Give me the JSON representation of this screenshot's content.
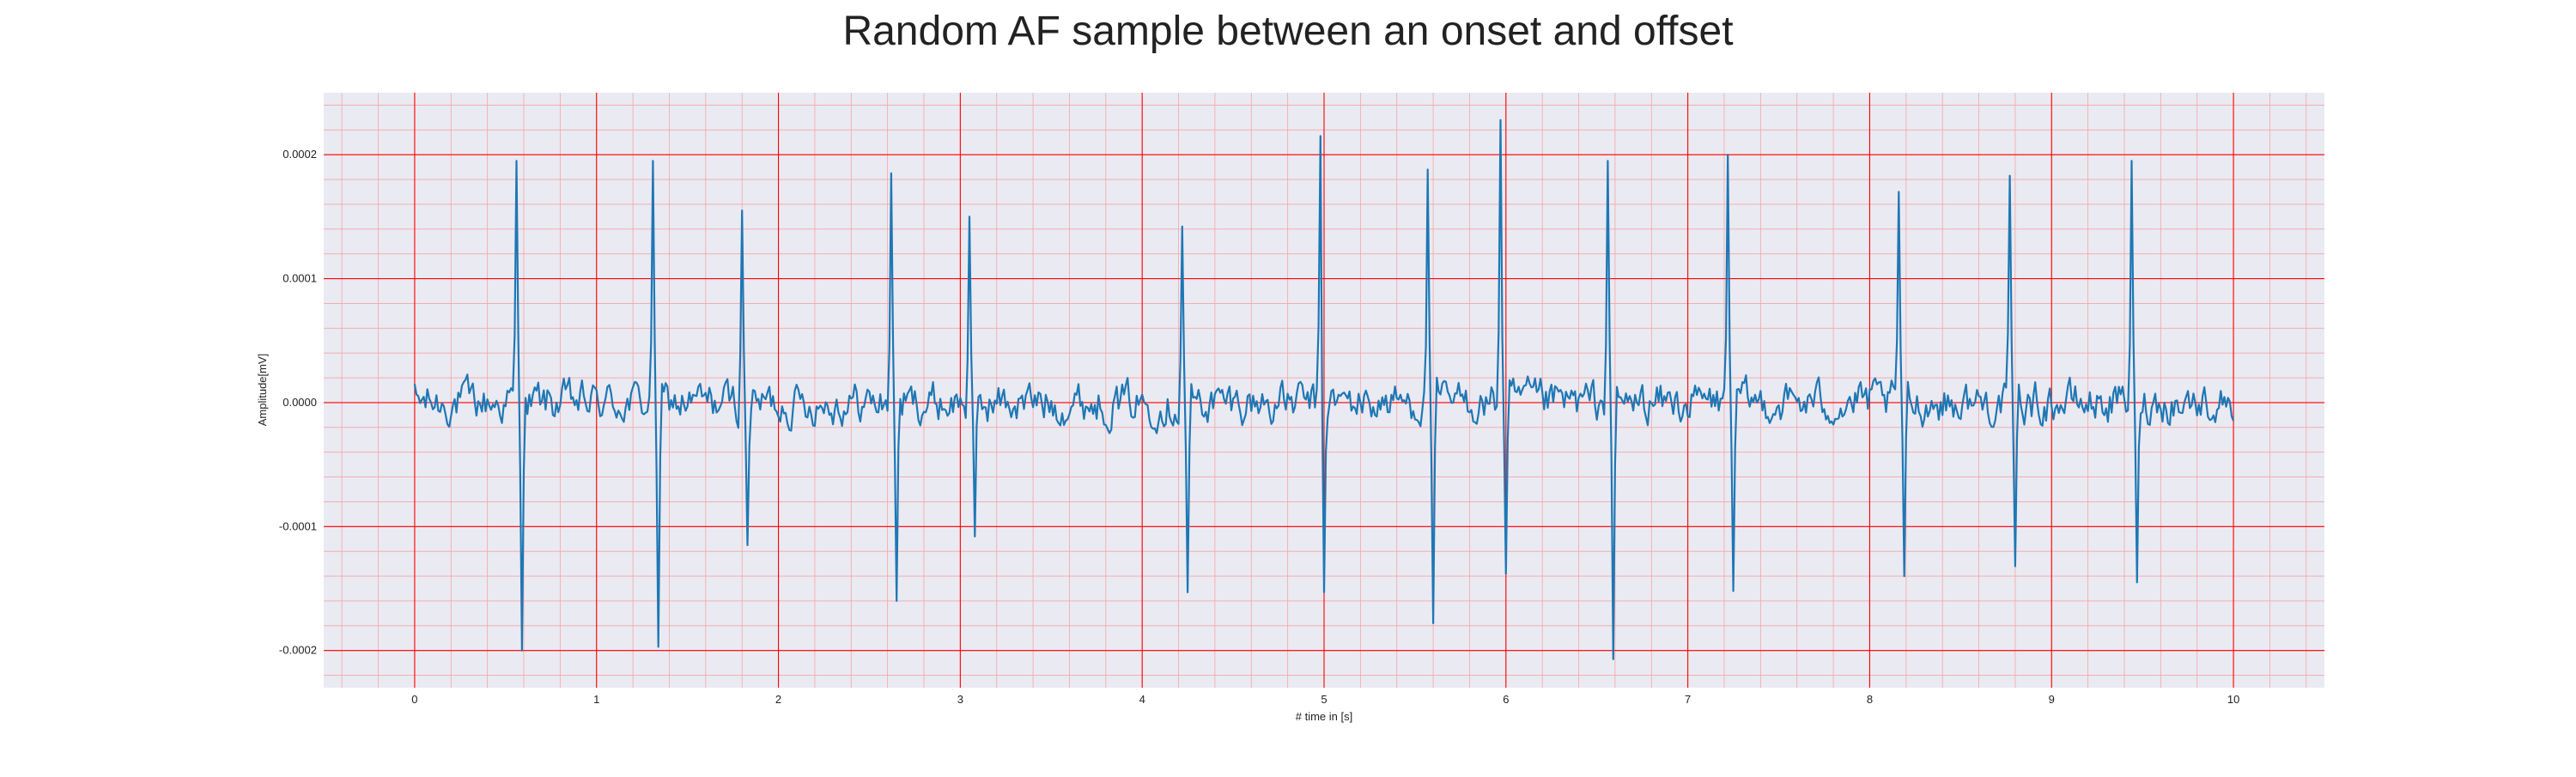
{
  "chart_data": {
    "type": "line",
    "title": "Random AF sample between an onset and offset",
    "xlabel": "# time in [s]",
    "ylabel": "Amplitude[mV]",
    "xlim": [
      -0.5,
      10.5
    ],
    "ylim": [
      -0.00023,
      0.00025
    ],
    "xticks": [
      0,
      1,
      2,
      3,
      4,
      5,
      6,
      7,
      8,
      9,
      10
    ],
    "xtick_labels": [
      "0",
      "1",
      "2",
      "3",
      "4",
      "5",
      "6",
      "7",
      "8",
      "9",
      "10"
    ],
    "yticks": [
      -0.0002,
      -0.0001,
      0.0,
      0.0001,
      0.0002
    ],
    "ytick_labels": [
      "-0.0002",
      "-0.0001",
      "0.0000",
      "0.0001",
      "0.0002"
    ],
    "grid": true,
    "minor_grid": true,
    "legend": "none",
    "colors": {
      "background": "#eaeaf2",
      "line": "#1f77b4",
      "major_grid": "#ff0000",
      "minor_grid": "#f4a6a6"
    },
    "series": [
      {
        "peaks": [
          {
            "x": 0.56,
            "y": 0.000195
          },
          {
            "x": 0.59,
            "y": -0.0002
          },
          {
            "x": 1.31,
            "y": 0.000195
          },
          {
            "x": 1.34,
            "y": -0.000197
          },
          {
            "x": 1.8,
            "y": 0.000155
          },
          {
            "x": 1.83,
            "y": -0.000115
          },
          {
            "x": 2.62,
            "y": 0.000185
          },
          {
            "x": 2.65,
            "y": -0.00016
          },
          {
            "x": 3.05,
            "y": 0.00015
          },
          {
            "x": 3.08,
            "y": -0.000108
          },
          {
            "x": 4.22,
            "y": 0.000142
          },
          {
            "x": 4.25,
            "y": -0.000153
          },
          {
            "x": 4.98,
            "y": 0.000215
          },
          {
            "x": 5.0,
            "y": -0.000153
          },
          {
            "x": 5.57,
            "y": 0.000188
          },
          {
            "x": 5.6,
            "y": -0.000178
          },
          {
            "x": 5.97,
            "y": 0.000228
          },
          {
            "x": 6.0,
            "y": -0.000138
          },
          {
            "x": 6.56,
            "y": 0.000195
          },
          {
            "x": 6.59,
            "y": -0.000207
          },
          {
            "x": 7.22,
            "y": 0.0002
          },
          {
            "x": 7.25,
            "y": -0.000152
          },
          {
            "x": 8.16,
            "y": 0.00017
          },
          {
            "x": 8.19,
            "y": -0.00014
          },
          {
            "x": 8.77,
            "y": 0.000183
          },
          {
            "x": 8.8,
            "y": -0.000132
          },
          {
            "x": 9.44,
            "y": 0.000195
          },
          {
            "x": 9.47,
            "y": -0.000145
          }
        ],
        "x_range": [
          0.0,
          10.0
        ],
        "baseline_noise_amplitude": 3e-05
      }
    ]
  }
}
